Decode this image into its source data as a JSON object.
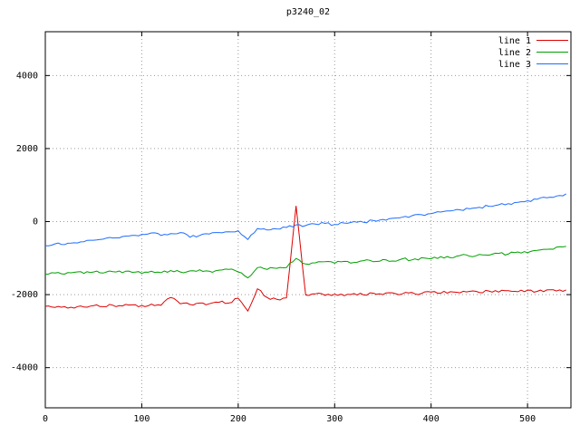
{
  "title": "p3240_02",
  "colors": {
    "background": "#ffffff",
    "border": "#000000",
    "grid": "#9a9a9a",
    "text": "#000000"
  },
  "chart_data": {
    "type": "line",
    "title": "p3240_02",
    "xlabel": "",
    "ylabel": "",
    "xlim": [
      0,
      545
    ],
    "ylim": [
      -5100,
      5200
    ],
    "xticks": [
      0,
      100,
      200,
      300,
      400,
      500
    ],
    "yticks": [
      -4000,
      -2000,
      0,
      2000,
      4000
    ],
    "grid": true,
    "legend_position": "top-right",
    "x_start": 0,
    "x_step": 10,
    "series": [
      {
        "name": "line 1",
        "color": "#dd0000",
        "noise": 40,
        "values": [
          -2320,
          -2350,
          -2330,
          -2370,
          -2340,
          -2300,
          -2330,
          -2290,
          -2310,
          -2280,
          -2300,
          -2260,
          -2290,
          -2080,
          -2250,
          -2270,
          -2230,
          -2250,
          -2210,
          -2230,
          -2100,
          -2450,
          -1840,
          -2080,
          -2130,
          -2090,
          430,
          -2010,
          -1980,
          -2020,
          -1990,
          -2030,
          -1970,
          -2010,
          -1960,
          -2000,
          -1950,
          -1980,
          -1940,
          -1970,
          -1930,
          -1960,
          -1920,
          -1950,
          -1910,
          -1940,
          -1900,
          -1930,
          -1890,
          -1920,
          -1880,
          -1910,
          -1870,
          -1900,
          -1870
        ]
      },
      {
        "name": "line 2",
        "color": "#00a000",
        "noise": 40,
        "values": [
          -1450,
          -1410,
          -1440,
          -1390,
          -1420,
          -1380,
          -1410,
          -1370,
          -1400,
          -1390,
          -1420,
          -1360,
          -1400,
          -1340,
          -1380,
          -1350,
          -1320,
          -1360,
          -1330,
          -1310,
          -1380,
          -1540,
          -1260,
          -1310,
          -1280,
          -1260,
          -1010,
          -1160,
          -1130,
          -1100,
          -1140,
          -1090,
          -1120,
          -1070,
          -1100,
          -1040,
          -1080,
          -1020,
          -1050,
          -990,
          -1020,
          -960,
          -990,
          -930,
          -950,
          -900,
          -920,
          -870,
          -890,
          -830,
          -850,
          -790,
          -760,
          -700,
          -680
        ]
      },
      {
        "name": "line 3",
        "color": "#1e6cff",
        "noise": 35,
        "values": [
          -660,
          -610,
          -630,
          -580,
          -550,
          -510,
          -480,
          -450,
          -410,
          -380,
          -350,
          -310,
          -380,
          -330,
          -300,
          -430,
          -380,
          -340,
          -300,
          -280,
          -250,
          -490,
          -190,
          -230,
          -200,
          -160,
          -90,
          -110,
          -70,
          -50,
          -80,
          -40,
          0,
          -20,
          30,
          60,
          90,
          120,
          160,
          190,
          220,
          260,
          290,
          320,
          350,
          390,
          420,
          460,
          490,
          530,
          570,
          610,
          650,
          700,
          760
        ]
      }
    ]
  }
}
